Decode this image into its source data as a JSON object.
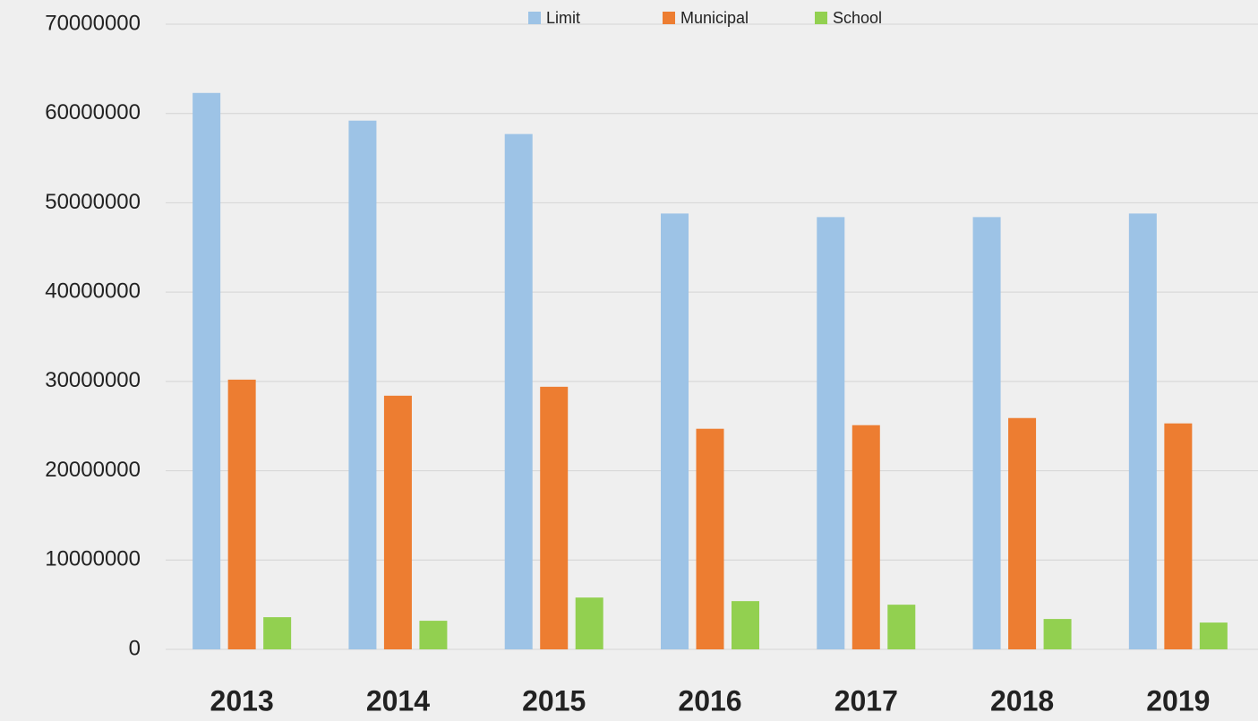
{
  "chart_data": {
    "type": "bar",
    "categories": [
      "2013",
      "2014",
      "2015",
      "2016",
      "2017",
      "2018",
      "2019"
    ],
    "series": [
      {
        "name": "Limit",
        "color": "#9dc3e6",
        "values": [
          62300000,
          59200000,
          57700000,
          48800000,
          48400000,
          48400000,
          48800000
        ]
      },
      {
        "name": "Municipal",
        "color": "#ed7d31",
        "values": [
          30200000,
          28400000,
          29400000,
          24700000,
          25100000,
          25900000,
          25300000
        ]
      },
      {
        "name": "School",
        "color": "#92d050",
        "values": [
          3600000,
          3200000,
          5800000,
          5400000,
          5000000,
          3400000,
          3000000
        ]
      }
    ],
    "ylim": [
      0,
      70000000
    ],
    "yticks": [
      0,
      10000000,
      20000000,
      30000000,
      40000000,
      50000000,
      60000000,
      70000000
    ],
    "grid": true,
    "legend": "top"
  }
}
